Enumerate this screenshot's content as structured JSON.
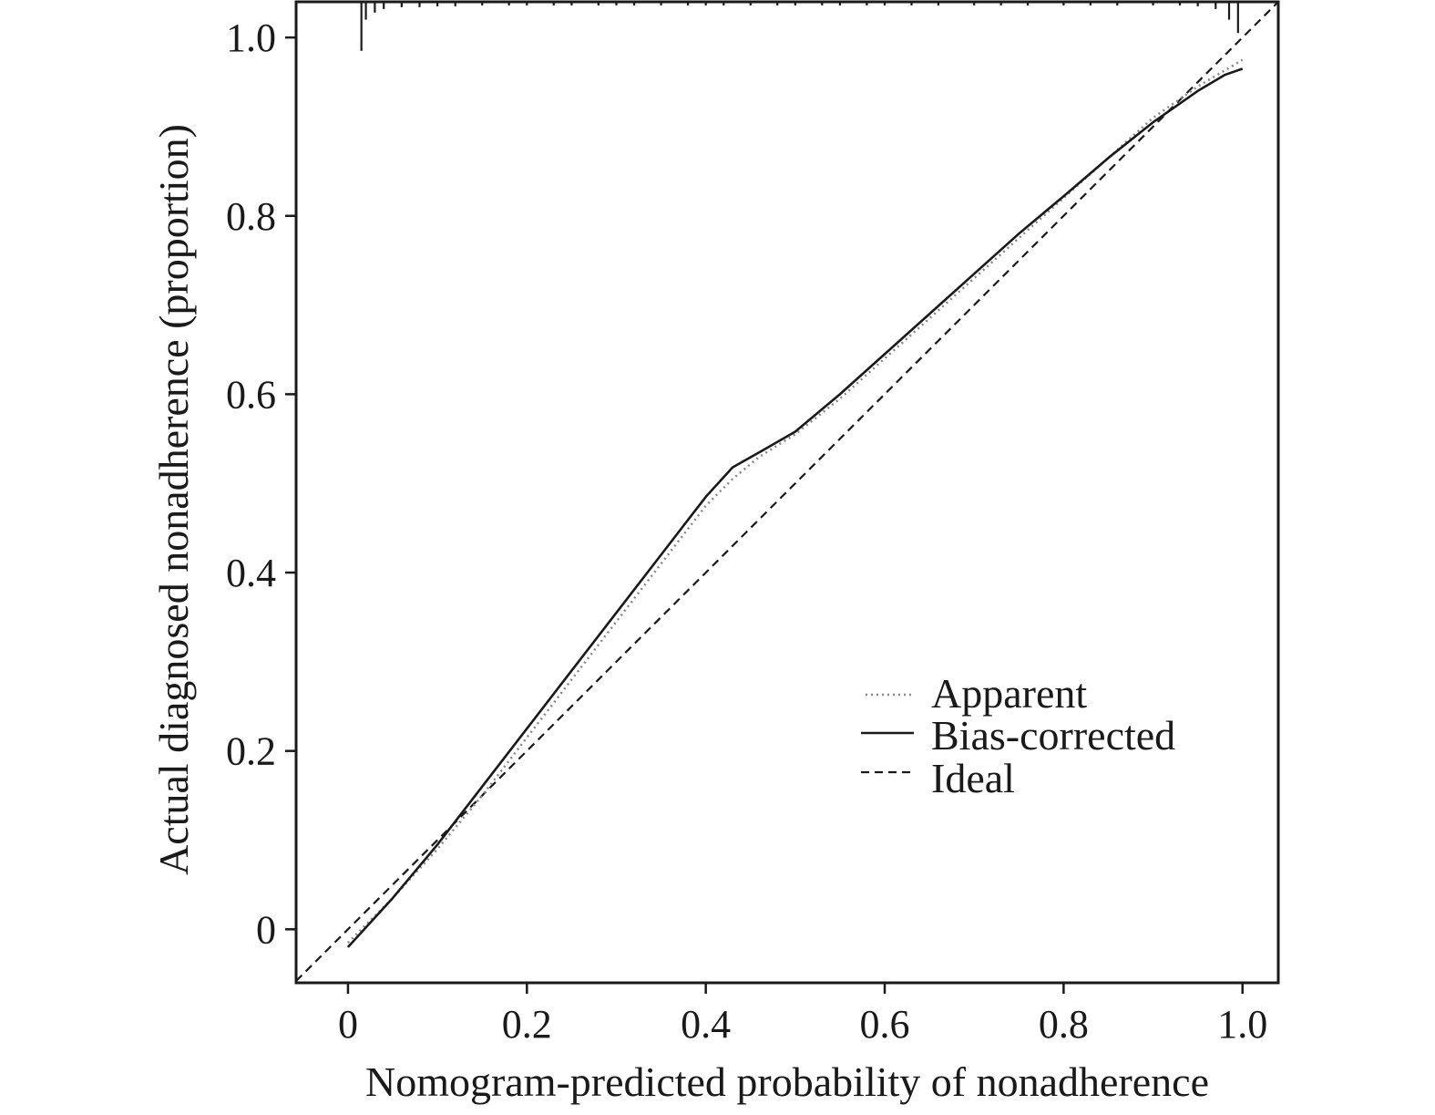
{
  "chart_data": {
    "type": "line",
    "title": "",
    "xlabel": "Nomogram-predicted probability of nonadherence",
    "ylabel": "Actual diagnosed nonadherence (proportion)",
    "xlim": [
      -0.058,
      1.04
    ],
    "ylim": [
      -0.06,
      1.04
    ],
    "xticks": [
      0,
      0.2,
      0.4,
      0.6,
      0.8,
      1.0
    ],
    "xtick_labels": [
      "0",
      "0.2",
      "0.4",
      "0.6",
      "0.8",
      "1.0"
    ],
    "yticks": [
      0,
      0.2,
      0.4,
      0.6,
      0.8,
      1.0
    ],
    "ytick_labels": [
      "0",
      "0.2",
      "0.4",
      "0.6",
      "0.8",
      "1.0"
    ],
    "grid": false,
    "legend_position": "bottom-right",
    "series": [
      {
        "name": "Apparent",
        "style": "dotted",
        "color": "#888888",
        "x": [
          0.0,
          0.05,
          0.1,
          0.15,
          0.2,
          0.25,
          0.3,
          0.35,
          0.4,
          0.43,
          0.46,
          0.5,
          0.55,
          0.6,
          0.65,
          0.7,
          0.75,
          0.8,
          0.85,
          0.9,
          0.95,
          1.0
        ],
        "y": [
          -0.015,
          0.035,
          0.09,
          0.15,
          0.215,
          0.28,
          0.345,
          0.41,
          0.475,
          0.505,
          0.53,
          0.555,
          0.595,
          0.64,
          0.685,
          0.73,
          0.775,
          0.82,
          0.865,
          0.91,
          0.945,
          0.975
        ]
      },
      {
        "name": "Bias-corrected",
        "style": "solid",
        "color": "#1a1a1a",
        "x": [
          0.0,
          0.05,
          0.1,
          0.15,
          0.2,
          0.25,
          0.3,
          0.35,
          0.4,
          0.43,
          0.46,
          0.5,
          0.55,
          0.6,
          0.65,
          0.7,
          0.75,
          0.8,
          0.85,
          0.9,
          0.95,
          0.98,
          1.0
        ],
        "y": [
          -0.02,
          0.035,
          0.095,
          0.16,
          0.225,
          0.29,
          0.355,
          0.42,
          0.485,
          0.518,
          0.535,
          0.558,
          0.6,
          0.645,
          0.69,
          0.735,
          0.78,
          0.822,
          0.865,
          0.905,
          0.94,
          0.958,
          0.965
        ]
      },
      {
        "name": "Ideal",
        "style": "dashed",
        "color": "#1a1a1a",
        "x": [
          -0.058,
          1.04
        ],
        "y": [
          -0.058,
          1.04
        ]
      }
    ],
    "rug": {
      "top_x": [
        0.015,
        0.02,
        0.03,
        0.04,
        0.06,
        0.08,
        0.1,
        0.12,
        0.15,
        0.18,
        0.2,
        0.23,
        0.25,
        0.28,
        0.3,
        0.32,
        0.35,
        0.38,
        0.4,
        0.42,
        0.45,
        0.48,
        0.5,
        0.53,
        0.55,
        0.58,
        0.6,
        0.63,
        0.66,
        0.7,
        0.73,
        0.76,
        0.8,
        0.83,
        0.86,
        0.9,
        0.93,
        0.95,
        0.97,
        0.985,
        0.995
      ],
      "top_heights": [
        0.055,
        0.02,
        0.012,
        0.008,
        0.006,
        0.006,
        0.005,
        0.005,
        0.004,
        0.004,
        0.004,
        0.004,
        0.004,
        0.004,
        0.004,
        0.004,
        0.004,
        0.004,
        0.004,
        0.004,
        0.004,
        0.004,
        0.004,
        0.004,
        0.004,
        0.004,
        0.004,
        0.004,
        0.004,
        0.004,
        0.004,
        0.004,
        0.004,
        0.004,
        0.004,
        0.004,
        0.004,
        0.005,
        0.008,
        0.02,
        0.035
      ]
    }
  }
}
